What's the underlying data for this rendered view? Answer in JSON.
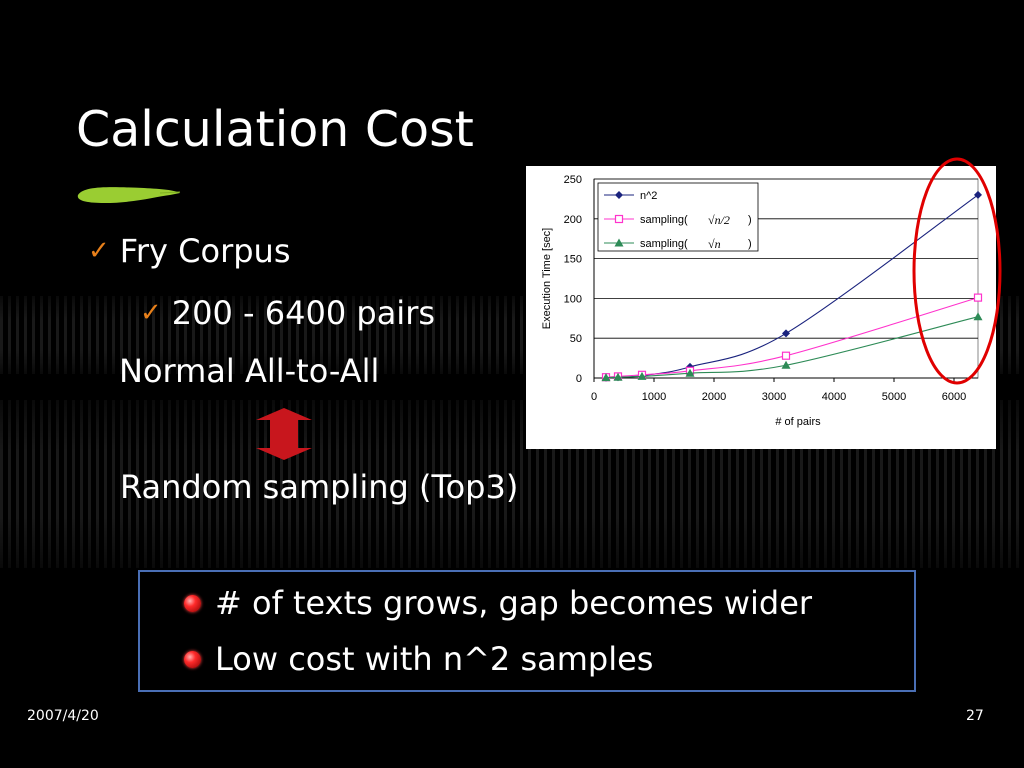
{
  "slide": {
    "title": "Calculation Cost",
    "bullet1": "Fry Corpus",
    "bullet2": "200 - 6400 pairs",
    "method1": "Normal All-to-All",
    "method2": "Random sampling (Top3)",
    "callout": [
      "# of texts grows, gap becomes wider",
      "Low cost with n^2 samples"
    ],
    "date": "2007/4/20",
    "page": "27"
  },
  "colors": {
    "checkmark": "#e8801a",
    "brush": "#9acd32",
    "arrow": "#c8161d",
    "callout_border": "#4a6fb5",
    "highlight_ellipse": "#e00000"
  },
  "chart_data": {
    "type": "line",
    "xlabel": "# of pairs",
    "ylabel": "Execution Time [sec]",
    "xlim": [
      0,
      6400
    ],
    "ylim": [
      0,
      250
    ],
    "xticks": [
      0,
      1000,
      2000,
      3000,
      4000,
      5000,
      6000
    ],
    "yticks": [
      0,
      50,
      100,
      150,
      200,
      250
    ],
    "grid": "horizontal",
    "legend_position": "top-left",
    "series": [
      {
        "name": "n^2",
        "legend_text": "n^2",
        "marker": "diamond",
        "color": "#1a237e",
        "x": [
          200,
          400,
          800,
          1600,
          3200,
          6400
        ],
        "y": [
          0.3,
          1,
          3,
          14,
          56,
          230
        ]
      },
      {
        "name": "sampling(√(n/2))",
        "legend_text": "sampling(",
        "formula": "√n/2",
        "marker": "square",
        "color": "#ff33cc",
        "x": [
          200,
          400,
          800,
          1600,
          3200,
          6400
        ],
        "y": [
          1,
          2,
          4,
          9,
          28,
          101
        ]
      },
      {
        "name": "sampling(√n)",
        "legend_text": "sampling(",
        "formula": "√n",
        "marker": "triangle",
        "color": "#2e8b57",
        "x": [
          200,
          400,
          800,
          1600,
          3200,
          6400
        ],
        "y": [
          0.5,
          1,
          2,
          6,
          16,
          77
        ]
      }
    ]
  }
}
